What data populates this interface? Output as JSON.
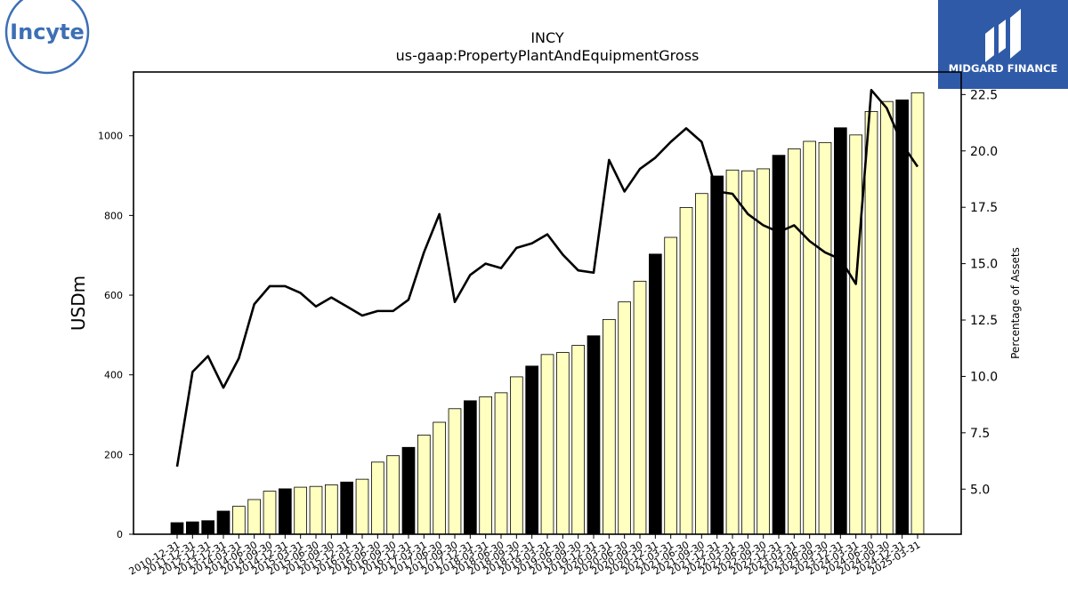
{
  "branding": {
    "company_logo_text": "Incyte",
    "publisher_name": "MIDGARD FINANCE",
    "company_color": "#3d6fb5",
    "publisher_bg": "#2f5aa8"
  },
  "chart_data": {
    "type": "bar",
    "title": "INCY",
    "subtitle": "us-gaap:PropertyPlantAndEquipmentGross",
    "ylabel": "USDm",
    "y2label": "Percentage of Assets",
    "ylim": [
      0,
      1160
    ],
    "y2lim": [
      3.0,
      23.5
    ],
    "yticks": [
      0,
      200,
      400,
      600,
      800,
      1000
    ],
    "y2ticks": [
      "5.0",
      "7.5",
      "10.0",
      "12.5",
      "15.0",
      "17.5",
      "20.0",
      "22.5"
    ],
    "categories": [
      "2010-12-31",
      "2011-12-31",
      "2012-12-31",
      "2013-12-31",
      "2014-03-31",
      "2014-06-30",
      "2014-09-30",
      "2014-12-31",
      "2015-03-31",
      "2015-06-30",
      "2015-09-30",
      "2015-12-31",
      "2016-03-31",
      "2016-06-30",
      "2016-09-30",
      "2016-12-31",
      "2017-03-31",
      "2017-06-30",
      "2017-09-30",
      "2017-12-31",
      "2018-03-31",
      "2018-06-30",
      "2018-09-30",
      "2018-12-31",
      "2019-03-31",
      "2019-06-30",
      "2019-09-30",
      "2019-12-31",
      "2020-03-31",
      "2020-06-30",
      "2020-09-30",
      "2020-12-31",
      "2021-03-31",
      "2021-06-30",
      "2021-09-30",
      "2021-12-31",
      "2022-03-31",
      "2022-06-30",
      "2022-09-30",
      "2022-12-31",
      "2023-03-31",
      "2023-06-30",
      "2023-09-30",
      "2023-12-31",
      "2024-03-31",
      "2024-06-30",
      "2024-09-30",
      "2024-12-31",
      "2025-03-31"
    ],
    "series": [
      {
        "name": "USDm",
        "kind": "bar",
        "values": [
          29,
          31,
          34,
          58,
          70,
          87,
          108,
          114,
          118,
          120,
          124,
          131,
          138,
          181,
          197,
          218,
          249,
          281,
          315,
          335,
          345,
          355,
          395,
          422,
          451,
          456,
          474,
          498,
          539,
          583,
          635,
          703,
          745,
          820,
          855,
          899,
          914,
          912,
          917,
          951,
          967,
          986,
          983,
          1020,
          1002,
          1061,
          1086,
          1090,
          1108
        ],
        "year_end_flags": [
          1,
          1,
          1,
          1,
          0,
          0,
          0,
          1,
          0,
          0,
          0,
          1,
          0,
          0,
          0,
          1,
          0,
          0,
          0,
          1,
          0,
          0,
          0,
          1,
          0,
          0,
          0,
          1,
          0,
          0,
          0,
          1,
          0,
          0,
          0,
          1,
          0,
          0,
          0,
          1,
          0,
          0,
          0,
          1,
          0,
          0,
          0,
          1,
          0
        ]
      },
      {
        "name": "Percentage of Assets",
        "kind": "line",
        "axis": "right",
        "values": [
          6.0,
          10.2,
          10.9,
          9.5,
          10.8,
          13.2,
          14.0,
          14.0,
          13.7,
          13.1,
          13.5,
          13.1,
          12.7,
          12.9,
          12.9,
          13.4,
          15.5,
          17.2,
          13.3,
          14.5,
          15.0,
          14.8,
          15.7,
          15.9,
          16.3,
          15.4,
          14.7,
          14.6,
          19.6,
          18.2,
          19.2,
          19.7,
          20.4,
          21.0,
          20.4,
          18.2,
          18.1,
          17.2,
          16.7,
          16.4,
          16.7,
          16.0,
          15.5,
          15.2,
          14.1,
          22.7,
          21.9,
          20.3,
          19.3
        ]
      }
    ],
    "colors": {
      "bar_regular": "#ffffc0",
      "bar_year_end": "#000000",
      "bar_edge": "#000000",
      "line": "#000000"
    },
    "grid": false,
    "legend": "none"
  }
}
